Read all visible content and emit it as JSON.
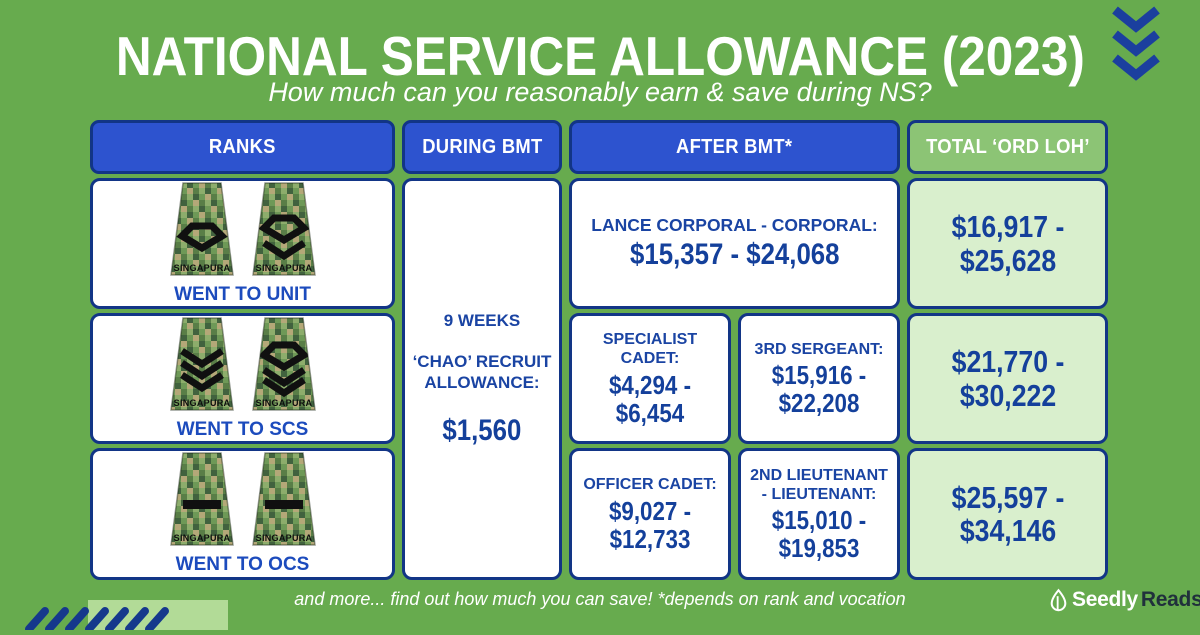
{
  "page": {
    "title": "NATIONAL SERVICE ALLOWANCE (2023)",
    "subtitle": "How much can you reasonably earn & save during NS?",
    "footer_note": "and more... find out how much you can save! *depends on rank and vocation",
    "brand": {
      "name_primary": "Seedly",
      "name_secondary": "Reads"
    }
  },
  "colors": {
    "background_green": "#67ab4e",
    "header_blue": "#2d53cf",
    "border_navy": "#123586",
    "text_navy": "#14409b",
    "rank_label_blue": "#1c4bbd",
    "total_header_green": "#8cc475",
    "total_cell_green": "#d9efcd",
    "accent_light_green": "#b2db97",
    "white": "#ffffff"
  },
  "table": {
    "headers": {
      "ranks": "RANKS",
      "during_bmt": "DURING BMT",
      "after_bmt": "AFTER BMT*",
      "total": "TOTAL ‘ORD LOH’"
    },
    "during_bmt_cell": {
      "line1": "9 WEEKS",
      "line2": "‘CHAO’ RECRUIT ALLOWANCE:",
      "amount": "$1,560"
    },
    "rows": [
      {
        "rank_label": "WENT TO UNIT",
        "insignia": [
          "lance-corporal",
          "corporal"
        ],
        "after_bmt": [
          {
            "title": "LANCE CORPORAL - CORPORAL:",
            "amount": "$15,357 - $24,068"
          }
        ],
        "total": "$16,917 - $25,628"
      },
      {
        "rank_label": "WENT TO SCS",
        "insignia": [
          "third-sergeant",
          "specialist-cadet"
        ],
        "after_bmt": [
          {
            "title": "SPECIALIST CADET:",
            "amount": "$4,294 - $6,454"
          },
          {
            "title": "3RD SERGEANT:",
            "amount": "$15,916 - $22,208"
          }
        ],
        "total": "$21,770 - $30,222"
      },
      {
        "rank_label": "WENT TO OCS",
        "insignia": [
          "second-lieutenant",
          "second-lieutenant"
        ],
        "after_bmt": [
          {
            "title": "OFFICER CADET:",
            "amount": "$9,027 - $12,733"
          },
          {
            "title": "2ND LIEUTENANT - LIEUTENANT:",
            "amount": "$15,010 - $19,853"
          }
        ],
        "total": "$25,597 - $34,146"
      }
    ],
    "epaulette_text": "SINGAPURA"
  },
  "chart_data": {
    "type": "table",
    "title": "NATIONAL SERVICE ALLOWANCE (2023)",
    "subtitle": "How much can you reasonably earn & save during NS?",
    "columns": [
      "RANKS",
      "DURING BMT",
      "AFTER BMT*",
      "TOTAL ‘ORD LOH’"
    ],
    "rows": [
      [
        "WENT TO UNIT",
        "9 WEEKS ‘CHAO’ RECRUIT ALLOWANCE: $1,560",
        "LANCE CORPORAL - CORPORAL: $15,357 - $24,068",
        "$16,917 - $25,628"
      ],
      [
        "WENT TO SCS",
        null,
        "SPECIALIST CADET: $4,294 - $6,454 | 3RD SERGEANT: $15,916 - $22,208",
        "$21,770 - $30,222"
      ],
      [
        "WENT TO OCS",
        null,
        "OFFICER CADET: $9,027 - $12,733 | 2ND LIEUTENANT - LIEUTENANT: $15,010 - $19,853",
        "$25,597 - $34,146"
      ]
    ],
    "notes": "DURING BMT column is a single merged cell spanning all three rows (null = merged continuation).",
    "footnote": "and more... find out how much you can save! *depends on rank and vocation"
  }
}
